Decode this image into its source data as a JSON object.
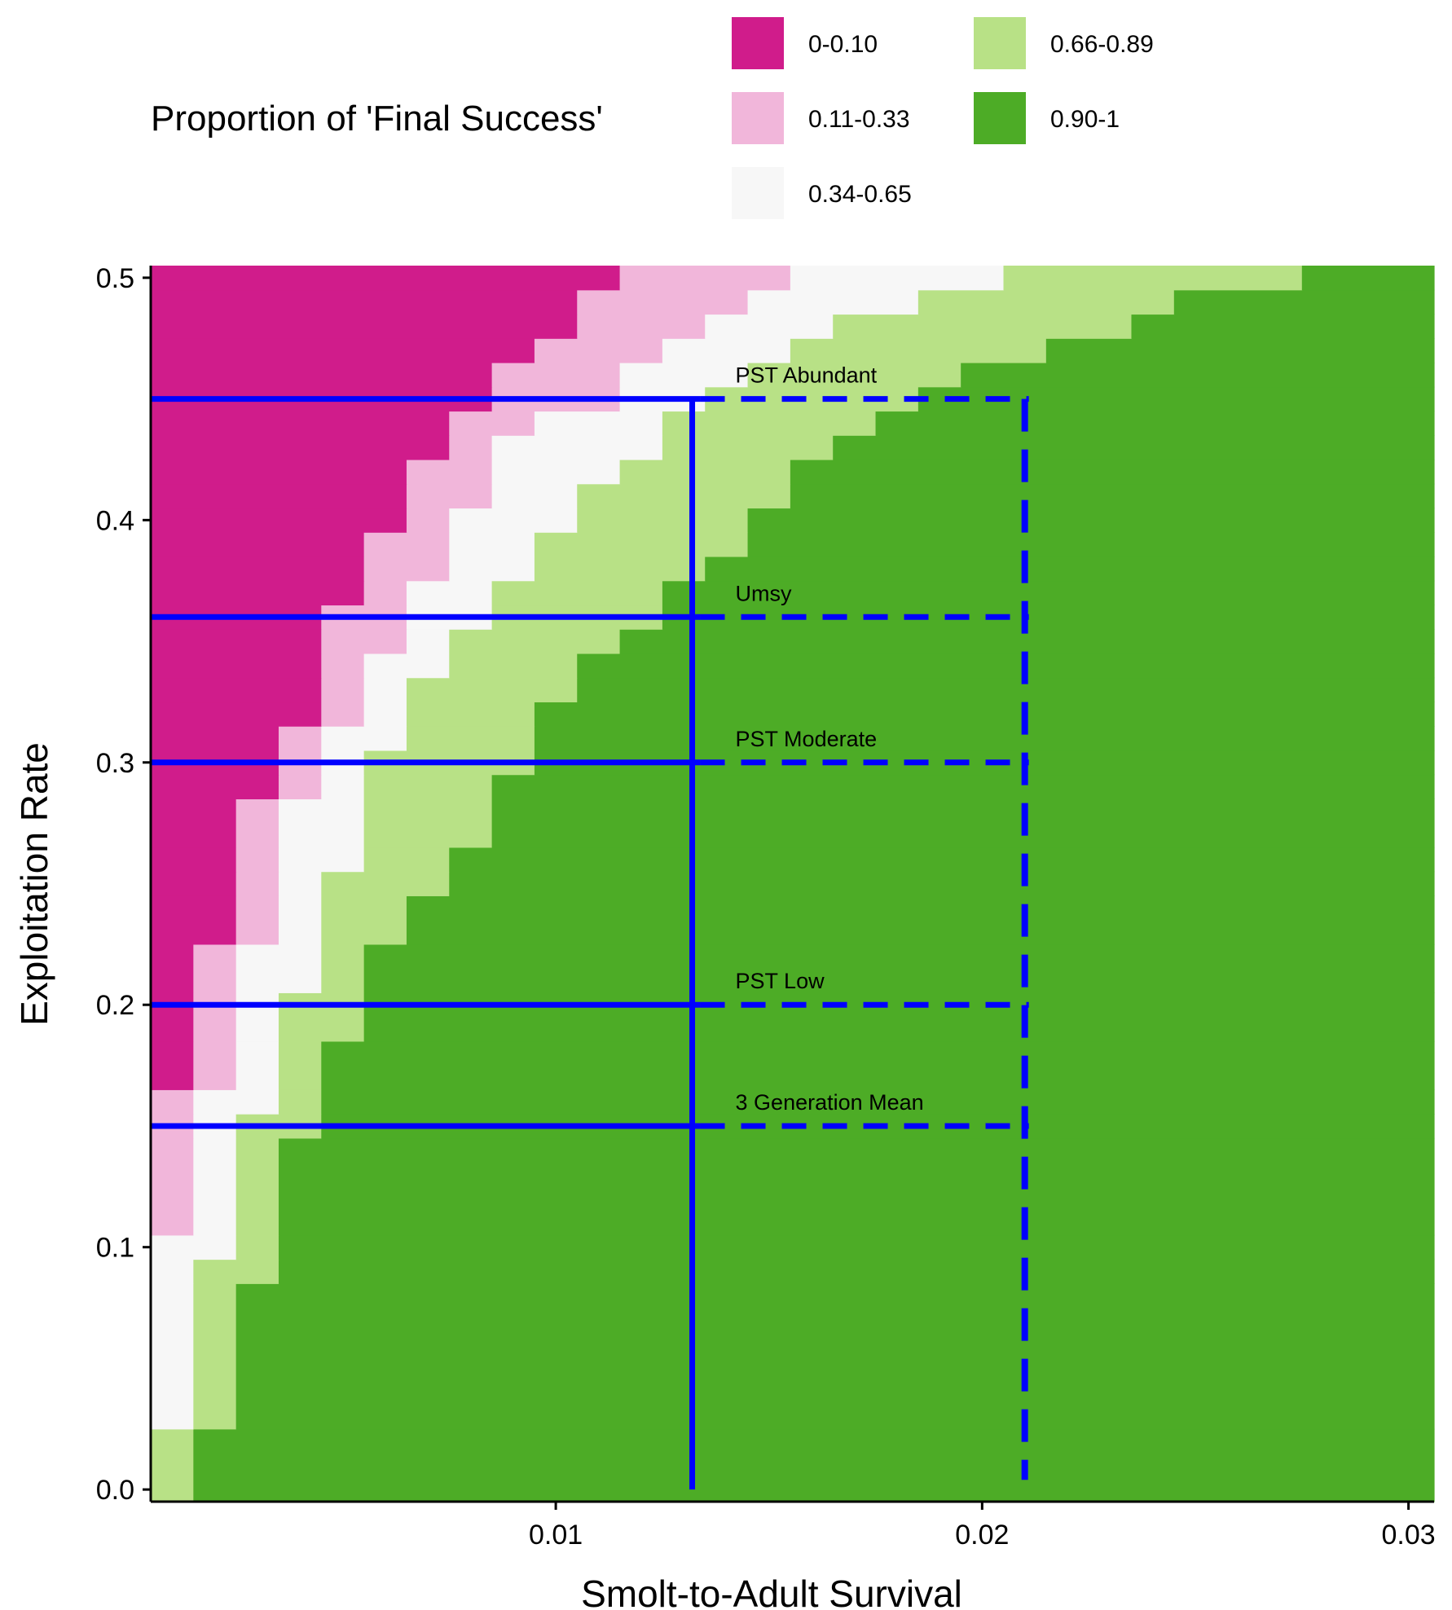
{
  "chart_data": {
    "type": "heatmap",
    "title": "",
    "xlabel": "Smolt-to-Adult Survival",
    "ylabel": "Exploitation Rate",
    "xlim": [
      0.0005,
      0.0306
    ],
    "ylim": [
      -0.005,
      0.505
    ],
    "xticks": [
      0.01,
      0.02,
      0.03
    ],
    "xtick_labels": [
      "0.01",
      "0.02",
      "0.03"
    ],
    "yticks": [
      0.0,
      0.1,
      0.2,
      0.3,
      0.4,
      0.5
    ],
    "ytick_labels": [
      "0.0",
      "0.1",
      "0.2",
      "0.3",
      "0.4",
      "0.5"
    ],
    "grid": false,
    "legend": {
      "title": "Proportion of 'Final Success'",
      "placement": "top",
      "items": [
        {
          "label": "0-0.10",
          "color": "#D01C8B"
        },
        {
          "label": "0.11-0.33",
          "color": "#F1B6DA"
        },
        {
          "label": "0.34-0.65",
          "color": "#F7F7F7"
        },
        {
          "label": "0.66-0.89",
          "color": "#B8E186"
        },
        {
          "label": "0.90-1",
          "color": "#4DAC26"
        }
      ]
    },
    "cell_grid": {
      "x_start": 0.0005,
      "x_step": 0.001,
      "y_start": -0.005,
      "y_step": 0.01,
      "note_columns": "for each exploitation-rate row, the survival value at which each class ends",
      "rows_from_bottom": [
        {
          "y_from": -0.005,
          "y_to": 0.025,
          "bounds": [
            0.0005,
            0.0005,
            0.0005,
            0.0015,
            0.0306
          ]
        },
        {
          "y_from": 0.025,
          "y_to": 0.085,
          "bounds": [
            0.0005,
            0.0005,
            0.0015,
            0.0025,
            0.0306
          ]
        },
        {
          "y_from": 0.085,
          "y_to": 0.095,
          "bounds": [
            0.0005,
            0.0005,
            0.0015,
            0.0035,
            0.0306
          ]
        },
        {
          "y_from": 0.095,
          "y_to": 0.105,
          "bounds": [
            0.0005,
            0.0005,
            0.0025,
            0.0035,
            0.0306
          ]
        },
        {
          "y_from": 0.105,
          "y_to": 0.145,
          "bounds": [
            0.0005,
            0.0015,
            0.0025,
            0.0035,
            0.0306
          ]
        },
        {
          "y_from": 0.145,
          "y_to": 0.155,
          "bounds": [
            0.0005,
            0.0015,
            0.0025,
            0.0045,
            0.0306
          ]
        },
        {
          "y_from": 0.155,
          "y_to": 0.165,
          "bounds": [
            0.0005,
            0.0015,
            0.0035,
            0.0045,
            0.0306
          ]
        },
        {
          "y_from": 0.165,
          "y_to": 0.185,
          "bounds": [
            0.0015,
            0.0025,
            0.0035,
            0.0045,
            0.0306
          ]
        },
        {
          "y_from": 0.185,
          "y_to": 0.205,
          "bounds": [
            0.0015,
            0.0025,
            0.0035,
            0.0055,
            0.0306
          ]
        },
        {
          "y_from": 0.205,
          "y_to": 0.225,
          "bounds": [
            0.0015,
            0.0025,
            0.0045,
            0.0055,
            0.0306
          ]
        },
        {
          "y_from": 0.225,
          "y_to": 0.245,
          "bounds": [
            0.0025,
            0.0035,
            0.0045,
            0.0065,
            0.0306
          ]
        },
        {
          "y_from": 0.245,
          "y_to": 0.255,
          "bounds": [
            0.0025,
            0.0035,
            0.0045,
            0.0075,
            0.0306
          ]
        },
        {
          "y_from": 0.255,
          "y_to": 0.265,
          "bounds": [
            0.0025,
            0.0035,
            0.0055,
            0.0075,
            0.0306
          ]
        },
        {
          "y_from": 0.265,
          "y_to": 0.285,
          "bounds": [
            0.0025,
            0.0035,
            0.0055,
            0.0085,
            0.0306
          ]
        },
        {
          "y_from": 0.285,
          "y_to": 0.295,
          "bounds": [
            0.0035,
            0.0045,
            0.0055,
            0.0085,
            0.0306
          ]
        },
        {
          "y_from": 0.295,
          "y_to": 0.305,
          "bounds": [
            0.0035,
            0.0045,
            0.0055,
            0.0095,
            0.0306
          ]
        },
        {
          "y_from": 0.305,
          "y_to": 0.315,
          "bounds": [
            0.0035,
            0.0045,
            0.0065,
            0.0095,
            0.0306
          ]
        },
        {
          "y_from": 0.315,
          "y_to": 0.325,
          "bounds": [
            0.0045,
            0.0055,
            0.0065,
            0.0095,
            0.0306
          ]
        },
        {
          "y_from": 0.325,
          "y_to": 0.335,
          "bounds": [
            0.0045,
            0.0055,
            0.0065,
            0.0105,
            0.0306
          ]
        },
        {
          "y_from": 0.335,
          "y_to": 0.345,
          "bounds": [
            0.0045,
            0.0055,
            0.0075,
            0.0105,
            0.0306
          ]
        },
        {
          "y_from": 0.345,
          "y_to": 0.355,
          "bounds": [
            0.0045,
            0.0065,
            0.0075,
            0.0115,
            0.0306
          ]
        },
        {
          "y_from": 0.355,
          "y_to": 0.365,
          "bounds": [
            0.0045,
            0.0065,
            0.0085,
            0.0125,
            0.0306
          ]
        },
        {
          "y_from": 0.365,
          "y_to": 0.375,
          "bounds": [
            0.0055,
            0.0065,
            0.0085,
            0.0125,
            0.0306
          ]
        },
        {
          "y_from": 0.375,
          "y_to": 0.385,
          "bounds": [
            0.0055,
            0.0075,
            0.0095,
            0.0135,
            0.0306
          ]
        },
        {
          "y_from": 0.385,
          "y_to": 0.395,
          "bounds": [
            0.0055,
            0.0075,
            0.0095,
            0.0145,
            0.0306
          ]
        },
        {
          "y_from": 0.395,
          "y_to": 0.405,
          "bounds": [
            0.0065,
            0.0075,
            0.0105,
            0.0145,
            0.0306
          ]
        },
        {
          "y_from": 0.405,
          "y_to": 0.415,
          "bounds": [
            0.0065,
            0.0085,
            0.0105,
            0.0155,
            0.0306
          ]
        },
        {
          "y_from": 0.415,
          "y_to": 0.425,
          "bounds": [
            0.0065,
            0.0085,
            0.0115,
            0.0155,
            0.0306
          ]
        },
        {
          "y_from": 0.425,
          "y_to": 0.435,
          "bounds": [
            0.0075,
            0.0085,
            0.0125,
            0.0165,
            0.0306
          ]
        },
        {
          "y_from": 0.435,
          "y_to": 0.445,
          "bounds": [
            0.0075,
            0.0095,
            0.0125,
            0.0175,
            0.0306
          ]
        },
        {
          "y_from": 0.445,
          "y_to": 0.455,
          "bounds": [
            0.0085,
            0.0115,
            0.0135,
            0.0185,
            0.0306
          ]
        },
        {
          "y_from": 0.455,
          "y_to": 0.465,
          "bounds": [
            0.0085,
            0.0115,
            0.0145,
            0.0195,
            0.0306
          ]
        },
        {
          "y_from": 0.465,
          "y_to": 0.475,
          "bounds": [
            0.0095,
            0.0125,
            0.0155,
            0.0215,
            0.0306
          ]
        },
        {
          "y_from": 0.475,
          "y_to": 0.485,
          "bounds": [
            0.0105,
            0.0135,
            0.0165,
            0.0235,
            0.0306
          ]
        },
        {
          "y_from": 0.485,
          "y_to": 0.495,
          "bounds": [
            0.0105,
            0.0145,
            0.0185,
            0.0245,
            0.0306
          ]
        },
        {
          "y_from": 0.495,
          "y_to": 0.505,
          "bounds": [
            0.0115,
            0.0155,
            0.0205,
            0.0275,
            0.0306
          ]
        }
      ]
    },
    "reference_lines": {
      "horizontal": [
        {
          "label": "PST Abundant",
          "y": 0.45
        },
        {
          "label": "Umsy",
          "y": 0.36
        },
        {
          "label": "PST Moderate",
          "y": 0.3
        },
        {
          "label": "PST Low",
          "y": 0.2
        },
        {
          "label": "3 Generation Mean",
          "y": 0.15
        }
      ],
      "vertical_solid_x": 0.0132,
      "vertical_dashed_x": 0.021,
      "line_color": "#0000FF"
    }
  }
}
